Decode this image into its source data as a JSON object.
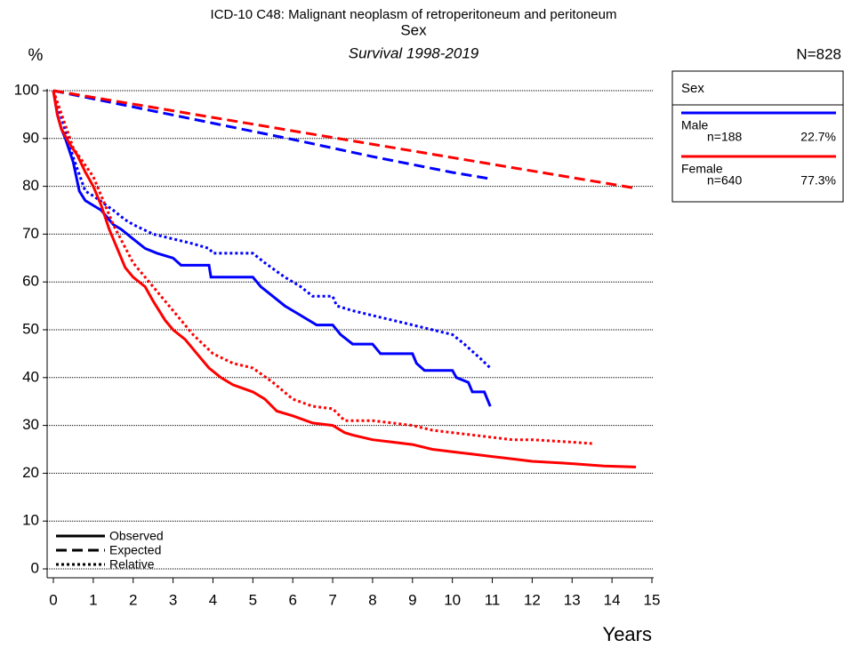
{
  "chart_data": {
    "type": "line",
    "title": "ICD-10 C48: Malignant neoplasm of retroperitoneum and peritoneum",
    "subtitle": "Sex",
    "caption": "Survival 1998-2019",
    "y_label": "%",
    "x_label": "Years",
    "n_total": "N=828",
    "legend_title": "Sex",
    "xlim": [
      0,
      15
    ],
    "ylim": [
      0,
      100
    ],
    "xticks": [
      0,
      1,
      2,
      3,
      4,
      5,
      6,
      7,
      8,
      9,
      10,
      11,
      12,
      13,
      14,
      15
    ],
    "yticks": [
      0,
      10,
      20,
      30,
      40,
      50,
      60,
      70,
      80,
      90,
      100
    ],
    "grid": true,
    "line_styles": {
      "observed": {
        "label": "Observed",
        "style": "solid"
      },
      "expected": {
        "label": "Expected",
        "style": "dashed"
      },
      "relative": {
        "label": "Relative",
        "style": "dotted"
      }
    },
    "groups": [
      {
        "name": "Male",
        "color": "#0000ff",
        "n_label": "n=188",
        "share_label": "22.7%",
        "curves": {
          "observed": {
            "x": [
              0,
              0.1,
              0.2,
              0.3,
              0.5,
              0.65,
              0.8,
              1.0,
              1.2,
              1.5,
              1.7,
              2,
              2.3,
              2.6,
              3,
              3.2,
              3.9,
              3.95,
              5,
              5.2,
              5.5,
              5.8,
              6.2,
              6.6,
              7,
              7.2,
              7.5,
              8,
              8.2,
              9,
              9.1,
              9.3,
              10,
              10.1,
              10.4,
              10.5,
              10.8,
              10.9,
              10.95
            ],
            "values": [
              100,
              95,
              92,
              90,
              85,
              79,
              77,
              76,
              75,
              72,
              71,
              69,
              67,
              66,
              65,
              63.5,
              63.5,
              61,
              61,
              59,
              57,
              55,
              53,
              51,
              51,
              49,
              47,
              47,
              45,
              45,
              43,
              41.5,
              41.5,
              40,
              39,
              37,
              37,
              35,
              34
            ]
          },
          "expected": {
            "x": [
              0,
              2,
              4,
              6,
              8,
              10,
              11
            ],
            "values": [
              100,
              96.6,
              93.2,
              89.8,
              86.2,
              82.9,
              81.5
            ]
          },
          "relative": {
            "x": [
              0,
              0.5,
              0.8,
              1,
              1.5,
              1.8,
              2,
              2.5,
              3,
              3.5,
              3.9,
              4,
              5,
              5.3,
              5.8,
              6.2,
              6.5,
              7,
              7.1,
              7.5,
              8,
              8.5,
              9,
              9.5,
              10,
              10.3,
              10.7,
              10.95
            ],
            "values": [
              100,
              86,
              79,
              78,
              75,
              73,
              72,
              70,
              69,
              68,
              67,
              66,
              66,
              64,
              61,
              59,
              57,
              57,
              55,
              54,
              53,
              52,
              51,
              50,
              49,
              47,
              44,
              42
            ]
          }
        }
      },
      {
        "name": "Female",
        "color": "#ff0000",
        "n_label": "n=640",
        "share_label": "77.3%",
        "curves": {
          "observed": {
            "x": [
              0,
              0.1,
              0.2,
              0.4,
              0.6,
              0.8,
              1,
              1.2,
              1.4,
              1.6,
              1.8,
              2,
              2.3,
              2.5,
              2.8,
              3,
              3.3,
              3.6,
              3.9,
              4.2,
              4.5,
              5,
              5.3,
              5.6,
              6,
              6.5,
              7,
              7.3,
              7.5,
              8,
              8.5,
              9,
              9.5,
              10,
              10.5,
              11,
              11.5,
              12,
              13,
              13.8,
              14.6
            ],
            "values": [
              100,
              95,
              92,
              89,
              86.5,
              83,
              80,
              76,
              71,
              67,
              63,
              61,
              59,
              56,
              52,
              50,
              48,
              45,
              42,
              40,
              38.5,
              37,
              35.5,
              33,
              32,
              30.5,
              30,
              28.5,
              28,
              27,
              26.5,
              26,
              25,
              24.5,
              24,
              23.5,
              23,
              22.5,
              22,
              21.5,
              21.3
            ]
          },
          "expected": {
            "x": [
              0,
              5,
              10,
              14.6
            ],
            "values": [
              100,
              93,
              86,
              79.6
            ]
          },
          "relative": {
            "x": [
              0,
              0.5,
              1,
              1.5,
              2,
              2.5,
              3,
              3.5,
              4,
              4.5,
              5,
              5.5,
              6,
              6.5,
              7,
              7.3,
              8,
              8.5,
              9,
              9.5,
              10,
              11,
              11.5,
              12,
              13,
              13.5
            ],
            "values": [
              100,
              88,
              82,
              72,
              64,
              59,
              54,
              49,
              45,
              43,
              42,
              39,
              35.5,
              34,
              33.5,
              31,
              31,
              30.5,
              30,
              29,
              28.5,
              27.5,
              27,
              27,
              26.5,
              26.2
            ]
          }
        }
      }
    ]
  }
}
